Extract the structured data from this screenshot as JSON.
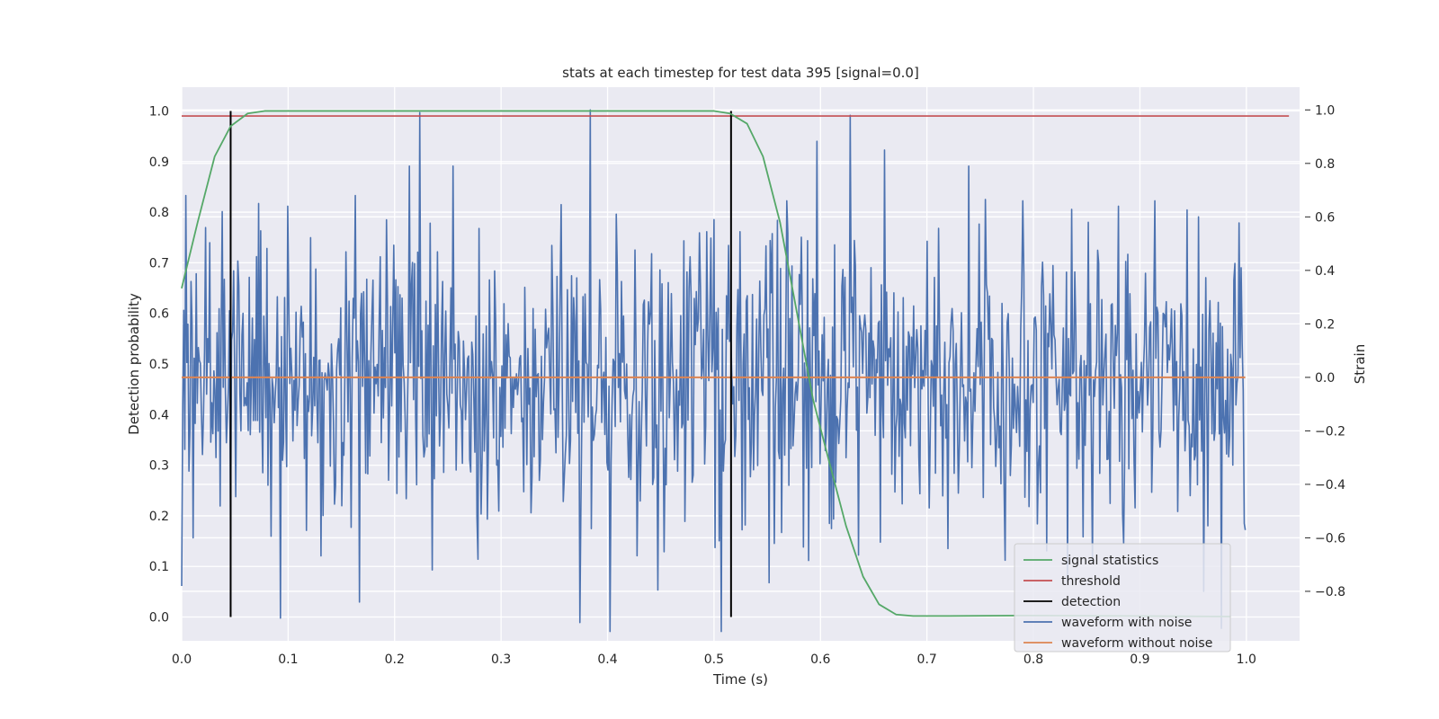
{
  "chart_data": {
    "type": "line",
    "title": "stats at each timestep for test data 395 [signal=0.0]",
    "xlabel": "Time (s)",
    "ylabel": "Detection probability",
    "y2label": "Strain",
    "xlim": [
      0.0,
      1.05
    ],
    "ylim": [
      -0.047,
      1.047
    ],
    "y2lim": [
      -0.985,
      1.085
    ],
    "xticks": [
      "0.0",
      "0.1",
      "0.2",
      "0.3",
      "0.4",
      "0.5",
      "0.6",
      "0.7",
      "0.8",
      "0.9",
      "1.0"
    ],
    "yticks": [
      "0.0",
      "0.1",
      "0.2",
      "0.3",
      "0.4",
      "0.5",
      "0.6",
      "0.7",
      "0.8",
      "0.9",
      "1.0"
    ],
    "y2ticks": [
      "−0.8",
      "−0.6",
      "−0.4",
      "−0.2",
      "0.0",
      "0.2",
      "0.4",
      "0.6",
      "0.8",
      "1.0"
    ],
    "grid": true,
    "legend_position": "lower-right",
    "colors": {
      "background": "#eaeaf2",
      "grid": "#ffffff",
      "signal_statistics": "#55a868",
      "threshold": "#c44e52",
      "detection": "#000000",
      "waveform_with_noise": "#4c72b0",
      "waveform_without_noise": "#dd8452"
    },
    "series": [
      {
        "name": "signal statistics",
        "axis": "left",
        "x": [
          0.0,
          0.015,
          0.031,
          0.046,
          0.062,
          0.078,
          0.1,
          0.2,
          0.3,
          0.4,
          0.5,
          0.515,
          0.531,
          0.546,
          0.562,
          0.578,
          0.593,
          0.609,
          0.624,
          0.64,
          0.655,
          0.671,
          0.687,
          0.72,
          0.8,
          0.9,
          0.985
        ],
        "y": [
          0.65,
          0.78,
          0.91,
          0.97,
          0.995,
          1.0,
          1.0,
          1.0,
          1.0,
          1.0,
          1.0,
          0.995,
          0.975,
          0.91,
          0.78,
          0.6,
          0.43,
          0.3,
          0.18,
          0.08,
          0.025,
          0.005,
          0.002,
          0.002,
          0.003,
          0.002,
          0.001
        ]
      },
      {
        "name": "threshold",
        "axis": "left",
        "x": [
          0.0,
          1.04
        ],
        "y": [
          0.99,
          0.99
        ]
      },
      {
        "name": "detection",
        "axis": "left",
        "vlines": [
          0.046,
          0.516
        ],
        "y_range": [
          0.0,
          1.0
        ]
      },
      {
        "name": "waveform with noise",
        "axis": "right",
        "x_range": [
          0.0,
          0.999
        ],
        "sample_count": 1024,
        "y_min": -0.95,
        "y_max": 0.99,
        "peaks": [
          {
            "x": 0.0,
            "y": -0.78
          },
          {
            "x": 0.004,
            "y": 0.68
          },
          {
            "x": 0.011,
            "y": -0.6
          },
          {
            "x": 0.022,
            "y": 0.56
          },
          {
            "x": 0.038,
            "y": 0.62
          },
          {
            "x": 0.046,
            "y": -0.58
          },
          {
            "x": 0.072,
            "y": 0.65
          },
          {
            "x": 0.093,
            "y": -0.9
          },
          {
            "x": 0.1,
            "y": 0.64
          },
          {
            "x": 0.15,
            "y": -0.48
          },
          {
            "x": 0.163,
            "y": 0.68
          },
          {
            "x": 0.167,
            "y": -0.84
          },
          {
            "x": 0.235,
            "y": -0.72
          },
          {
            "x": 0.255,
            "y": 0.79
          },
          {
            "x": 0.278,
            "y": -0.68
          },
          {
            "x": 0.384,
            "y": 1.0
          },
          {
            "x": 0.5,
            "y": 0.59
          },
          {
            "x": 0.563,
            "y": -0.58
          },
          {
            "x": 0.628,
            "y": 0.98
          },
          {
            "x": 0.66,
            "y": 0.85
          },
          {
            "x": 0.72,
            "y": -0.64
          },
          {
            "x": 0.739,
            "y": 0.79
          },
          {
            "x": 0.79,
            "y": 0.66
          },
          {
            "x": 0.88,
            "y": 0.64
          },
          {
            "x": 0.885,
            "y": -0.62
          },
          {
            "x": 0.914,
            "y": 0.66
          },
          {
            "x": 0.955,
            "y": 0.6
          },
          {
            "x": 0.96,
            "y": -0.8
          },
          {
            "x": 0.995,
            "y": 0.41
          }
        ]
      },
      {
        "name": "waveform without noise",
        "axis": "right",
        "x": [
          0.0,
          0.999
        ],
        "y": [
          0.0,
          0.0
        ]
      }
    ]
  }
}
